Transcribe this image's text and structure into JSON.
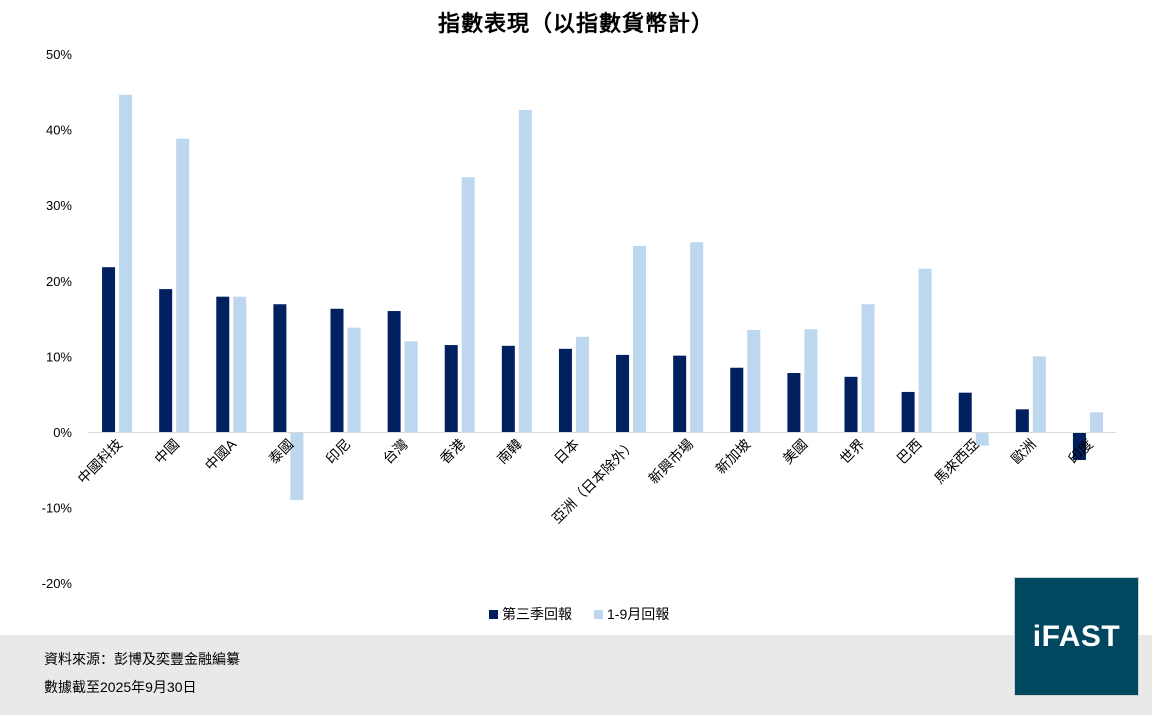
{
  "title": "指數表現（以指數貨幣計）",
  "legend": {
    "items": [
      {
        "label": "第三季回報",
        "color": "#002060"
      },
      {
        "label": "1-9月回報",
        "color": "#bdd7ee"
      }
    ]
  },
  "footer": {
    "source": "資料來源：彭博及奕豐金融編纂",
    "date_note": "數據截至2025年9月30日"
  },
  "logo": {
    "text": "iFAST",
    "color": "#004760"
  },
  "chart_data": {
    "type": "bar",
    "title": "指數表現（以指數貨幣計）",
    "xlabel": "",
    "ylabel": "",
    "ylim": [
      -20,
      50
    ],
    "yticks": [
      50,
      40,
      30,
      20,
      10,
      0,
      -10,
      -20
    ],
    "ytick_labels": [
      "50%",
      "40%",
      "30%",
      "20%",
      "10%",
      "0%",
      "-10%",
      "-20%"
    ],
    "grid": false,
    "legend_position": "bottom",
    "categories": [
      "中國科技",
      "中國",
      "中國A",
      "泰國",
      "印尼",
      "台灣",
      "香港",
      "南韓",
      "日本",
      "亞洲（日本除外）",
      "新興市場",
      "新加坡",
      "美國",
      "世界",
      "巴西",
      "馬來西亞",
      "歐洲",
      "印度"
    ],
    "series": [
      {
        "name": "第三季回報",
        "color": "#002060",
        "values": [
          21.8,
          18.9,
          17.9,
          16.9,
          16.3,
          16.0,
          11.5,
          11.4,
          11.0,
          10.2,
          10.1,
          8.5,
          7.8,
          7.3,
          5.3,
          5.2,
          3.0,
          -3.7
        ]
      },
      {
        "name": "1-9月回報",
        "color": "#bdd7ee",
        "values": [
          44.6,
          38.8,
          17.9,
          -9.0,
          13.8,
          12.0,
          33.7,
          42.6,
          12.6,
          24.6,
          25.1,
          13.5,
          13.6,
          16.9,
          21.6,
          -1.8,
          10.0,
          2.6
        ]
      }
    ]
  }
}
